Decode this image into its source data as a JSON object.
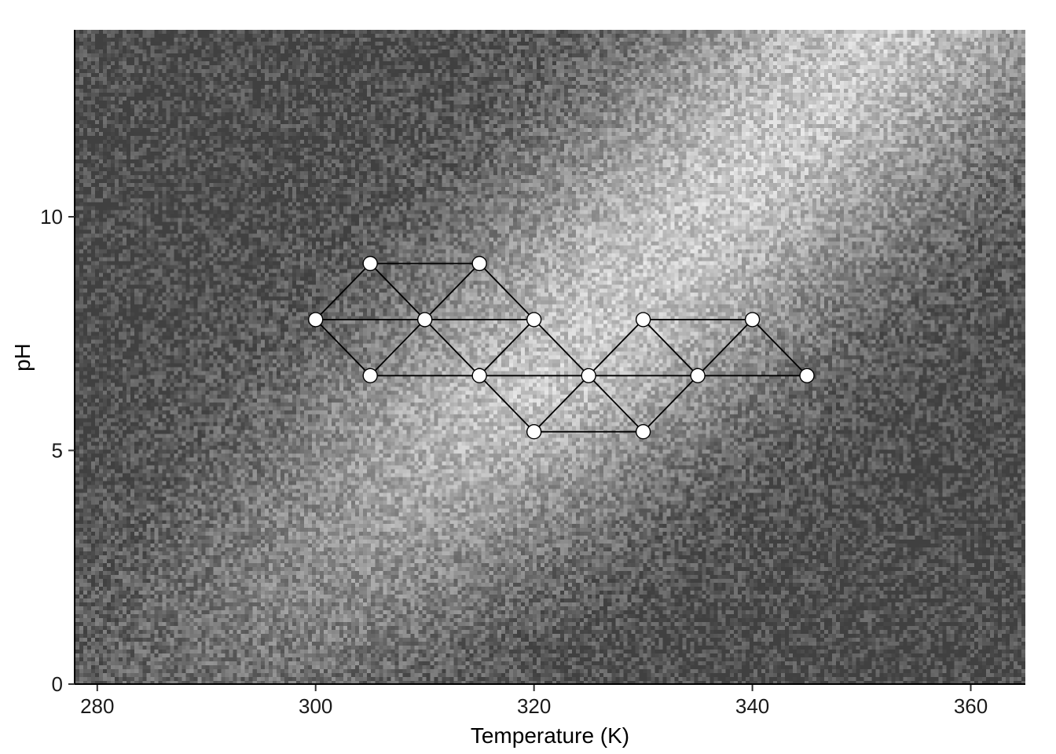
{
  "chart_data": {
    "type": "heatmap",
    "xlabel": "Temperature (K)",
    "ylabel": "pH",
    "xlim": [
      278,
      365
    ],
    "ylim": [
      0,
      14
    ],
    "x_ticks": [
      280,
      300,
      320,
      340,
      360
    ],
    "y_ticks": [
      0,
      5,
      10
    ],
    "colormap": [
      "#4d4d4d",
      "#e6e6e6"
    ],
    "background": {
      "description_level": "noisy grayscale field, brighter diagonal band from upper-left toward center",
      "grid": false
    },
    "overlay": {
      "nodes": [
        {
          "x": 300,
          "y": 7.8
        },
        {
          "x": 305,
          "y": 9.0
        },
        {
          "x": 305,
          "y": 6.6
        },
        {
          "x": 310,
          "y": 7.8
        },
        {
          "x": 315,
          "y": 9.0
        },
        {
          "x": 315,
          "y": 6.6
        },
        {
          "x": 320,
          "y": 7.8
        },
        {
          "x": 320,
          "y": 5.4
        },
        {
          "x": 325,
          "y": 6.6
        },
        {
          "x": 330,
          "y": 7.8
        },
        {
          "x": 330,
          "y": 5.4
        },
        {
          "x": 335,
          "y": 6.6
        },
        {
          "x": 340,
          "y": 7.8
        },
        {
          "x": 345,
          "y": 6.6
        }
      ],
      "edges": [
        [
          0,
          1
        ],
        [
          0,
          2
        ],
        [
          0,
          3
        ],
        [
          1,
          3
        ],
        [
          1,
          4
        ],
        [
          2,
          3
        ],
        [
          2,
          5
        ],
        [
          3,
          4
        ],
        [
          3,
          5
        ],
        [
          3,
          6
        ],
        [
          4,
          6
        ],
        [
          5,
          6
        ],
        [
          5,
          7
        ],
        [
          5,
          8
        ],
        [
          6,
          8
        ],
        [
          7,
          8
        ],
        [
          7,
          10
        ],
        [
          8,
          9
        ],
        [
          8,
          10
        ],
        [
          8,
          11
        ],
        [
          9,
          11
        ],
        [
          9,
          12
        ],
        [
          10,
          11
        ],
        [
          11,
          12
        ],
        [
          11,
          13
        ],
        [
          12,
          13
        ]
      ],
      "node_color": "#ffffff",
      "edge_color": "#000000"
    }
  }
}
